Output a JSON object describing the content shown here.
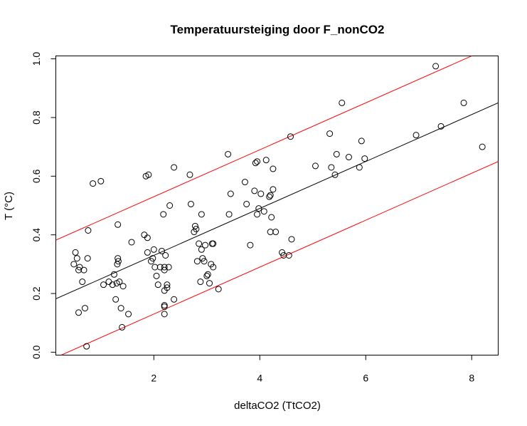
{
  "chart_data": {
    "type": "scatter",
    "title": "Temperatuursteiging door F_nonCO2",
    "xlabel": "deltaCO2 (TtCO2)",
    "ylabel": "T (°C)",
    "xlim": [
      0.15,
      8.5
    ],
    "ylim": [
      -0.01,
      1.01
    ],
    "xticks": [
      2,
      4,
      6,
      8
    ],
    "yticks": [
      0.0,
      0.2,
      0.4,
      0.6,
      0.8,
      1.0
    ],
    "yticklabels": [
      "0.0",
      "0.2",
      "0.4",
      "0.6",
      "0.8",
      "1.0"
    ],
    "grid": false,
    "line_colors": {
      "fit": "#000000",
      "bounds": "#ff0000"
    },
    "lines": [
      {
        "role": "fit",
        "slope": 0.08,
        "intercept": 0.17
      },
      {
        "role": "upper",
        "slope": 0.08,
        "intercept": 0.37
      },
      {
        "role": "lower",
        "slope": 0.08,
        "intercept": -0.03
      }
    ],
    "points": [
      [
        0.52,
        0.34
      ],
      [
        0.55,
        0.32
      ],
      [
        0.49,
        0.3
      ],
      [
        0.6,
        0.29
      ],
      [
        0.58,
        0.28
      ],
      [
        0.68,
        0.28
      ],
      [
        0.65,
        0.24
      ],
      [
        0.75,
        0.32
      ],
      [
        0.76,
        0.415
      ],
      [
        0.7,
        0.15
      ],
      [
        0.58,
        0.135
      ],
      [
        0.73,
        0.02
      ],
      [
        0.85,
        0.575
      ],
      [
        1.0,
        0.583
      ],
      [
        1.05,
        0.23
      ],
      [
        1.15,
        0.24
      ],
      [
        1.22,
        0.23
      ],
      [
        1.25,
        0.265
      ],
      [
        1.28,
        0.18
      ],
      [
        1.3,
        0.235
      ],
      [
        1.32,
        0.32
      ],
      [
        1.31,
        0.3
      ],
      [
        1.33,
        0.31
      ],
      [
        1.35,
        0.24
      ],
      [
        1.38,
        0.15
      ],
      [
        1.4,
        0.085
      ],
      [
        1.42,
        0.225
      ],
      [
        1.32,
        0.435
      ],
      [
        1.52,
        0.13
      ],
      [
        1.58,
        0.375
      ],
      [
        1.82,
        0.4
      ],
      [
        1.88,
        0.34
      ],
      [
        1.85,
        0.6
      ],
      [
        1.9,
        0.605
      ],
      [
        1.88,
        0.39
      ],
      [
        1.95,
        0.31
      ],
      [
        1.98,
        0.32
      ],
      [
        2.0,
        0.35
      ],
      [
        2.02,
        0.29
      ],
      [
        2.05,
        0.26
      ],
      [
        2.08,
        0.23
      ],
      [
        2.12,
        0.29
      ],
      [
        2.15,
        0.345
      ],
      [
        2.18,
        0.47
      ],
      [
        2.2,
        0.28
      ],
      [
        2.2,
        0.29
      ],
      [
        2.2,
        0.21
      ],
      [
        2.2,
        0.155
      ],
      [
        2.2,
        0.13
      ],
      [
        2.2,
        0.16
      ],
      [
        2.22,
        0.33
      ],
      [
        2.25,
        0.22
      ],
      [
        2.25,
        0.23
      ],
      [
        2.3,
        0.5
      ],
      [
        2.28,
        0.29
      ],
      [
        2.38,
        0.63
      ],
      [
        2.38,
        0.18
      ],
      [
        2.68,
        0.605
      ],
      [
        2.7,
        0.505
      ],
      [
        2.76,
        0.41
      ],
      [
        2.78,
        0.43
      ],
      [
        2.8,
        0.42
      ],
      [
        2.82,
        0.31
      ],
      [
        2.85,
        0.37
      ],
      [
        2.88,
        0.24
      ],
      [
        2.9,
        0.47
      ],
      [
        2.9,
        0.35
      ],
      [
        2.92,
        0.32
      ],
      [
        2.95,
        0.31
      ],
      [
        2.97,
        0.365
      ],
      [
        3.0,
        0.26
      ],
      [
        3.02,
        0.265
      ],
      [
        3.05,
        0.235
      ],
      [
        3.08,
        0.3
      ],
      [
        3.1,
        0.37
      ],
      [
        3.12,
        0.37
      ],
      [
        3.12,
        0.29
      ],
      [
        3.22,
        0.215
      ],
      [
        3.4,
        0.675
      ],
      [
        3.42,
        0.47
      ],
      [
        3.45,
        0.54
      ],
      [
        3.72,
        0.58
      ],
      [
        3.75,
        0.505
      ],
      [
        3.82,
        0.365
      ],
      [
        3.9,
        0.55
      ],
      [
        3.92,
        0.645
      ],
      [
        3.95,
        0.65
      ],
      [
        3.95,
        0.47
      ],
      [
        3.98,
        0.49
      ],
      [
        4.02,
        0.54
      ],
      [
        4.08,
        0.48
      ],
      [
        4.12,
        0.655
      ],
      [
        4.18,
        0.53
      ],
      [
        4.2,
        0.535
      ],
      [
        4.2,
        0.41
      ],
      [
        4.22,
        0.46
      ],
      [
        4.25,
        0.555
      ],
      [
        4.25,
        0.625
      ],
      [
        4.3,
        0.41
      ],
      [
        4.42,
        0.34
      ],
      [
        4.45,
        0.33
      ],
      [
        4.55,
        0.33
      ],
      [
        4.58,
        0.735
      ],
      [
        4.6,
        0.385
      ],
      [
        5.05,
        0.635
      ],
      [
        5.32,
        0.745
      ],
      [
        5.35,
        0.63
      ],
      [
        5.42,
        0.605
      ],
      [
        5.45,
        0.675
      ],
      [
        5.55,
        0.85
      ],
      [
        5.68,
        0.665
      ],
      [
        5.88,
        0.63
      ],
      [
        5.92,
        0.72
      ],
      [
        5.98,
        0.66
      ],
      [
        6.95,
        0.74
      ],
      [
        7.32,
        0.975
      ],
      [
        7.42,
        0.77
      ],
      [
        7.85,
        0.85
      ],
      [
        8.2,
        0.7
      ]
    ]
  }
}
